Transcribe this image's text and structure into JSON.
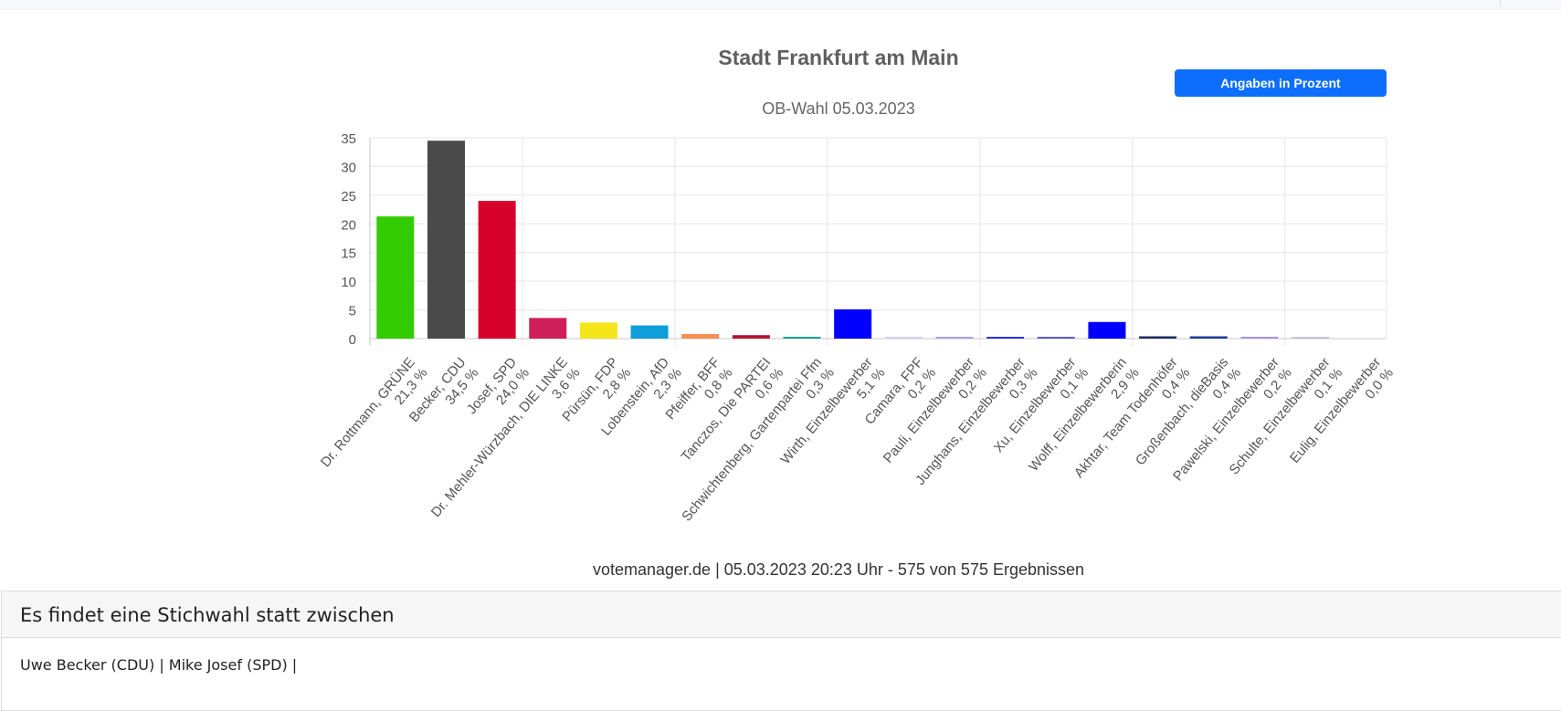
{
  "header": {
    "title": "Stadt Frankfurt am Main",
    "subtitle": "OB-Wahl 05.03.2023"
  },
  "unit_button_label": "Angaben in Prozent",
  "chart_data": {
    "type": "bar",
    "title": "Stadt Frankfurt am Main",
    "subtitle": "OB-Wahl 05.03.2023",
    "xlabel": "",
    "ylabel": "",
    "ylim": [
      0,
      35
    ],
    "yticks": [
      0,
      5,
      10,
      15,
      20,
      25,
      30,
      35
    ],
    "grid": true,
    "legend": "none",
    "categories": [
      "Dr. Rottmann, GRÜNE",
      "Becker, CDU",
      "Josef, SPD",
      "Dr. Mehler-Würzbach, DIE LINKE",
      "Pürsün, FDP",
      "Lobenstein, AfD",
      "Pfeiffer, BFF",
      "Tanczos, Die PARTEI",
      "Schwichtenberg, Gartenpartei Ffm",
      "Wirth, Einzelbewerber",
      "Camara, FPF",
      "Pauli, Einzelbewerber",
      "Junghans, Einzelbewerber",
      "Xu, Einzelbewerber",
      "Wolff, Einzelbewerberin",
      "Akhtar, Team Todenhöfer",
      "Großenbach, dieBasis",
      "Pawelski, Einzelbewerber",
      "Schulte, Einzelbewerber",
      "Eulig, Einzelbewerber"
    ],
    "value_labels": [
      "21,3 %",
      "34,5 %",
      "24,0 %",
      "3,6 %",
      "2,8 %",
      "2,3 %",
      "0,8 %",
      "0,6 %",
      "0,3 %",
      "5,1 %",
      "0,2 %",
      "0,2 %",
      "0,3 %",
      "0,1 %",
      "2,9 %",
      "0,4 %",
      "0,4 %",
      "0,2 %",
      "0,1 %",
      "0,0 %"
    ],
    "values": [
      21.3,
      34.5,
      24.0,
      3.6,
      2.8,
      2.3,
      0.8,
      0.6,
      0.3,
      5.1,
      0.2,
      0.2,
      0.3,
      0.1,
      2.9,
      0.4,
      0.4,
      0.2,
      0.1,
      0.0
    ],
    "colors": [
      "#33cc00",
      "#4a4a4a",
      "#d6002b",
      "#cf1f5a",
      "#f5e61a",
      "#0e9ed9",
      "#f58f53",
      "#b5102e",
      "#19a48e",
      "#0000ff",
      "#d6cfe6",
      "#a99ef0",
      "#2e2ee6",
      "#5a5acf",
      "#0000ff",
      "#1f2b66",
      "#1f3b99",
      "#a990ee",
      "#c8c8d8",
      "#c8c8d8"
    ]
  },
  "source": "votemanager.de | 05.03.2023 20:23 Uhr - 575 von 575 Ergebnissen",
  "runoff": {
    "title": "Es findet eine Stichwahl statt zwischen",
    "text": "Uwe Becker (CDU) | Mike Josef (SPD) |"
  }
}
